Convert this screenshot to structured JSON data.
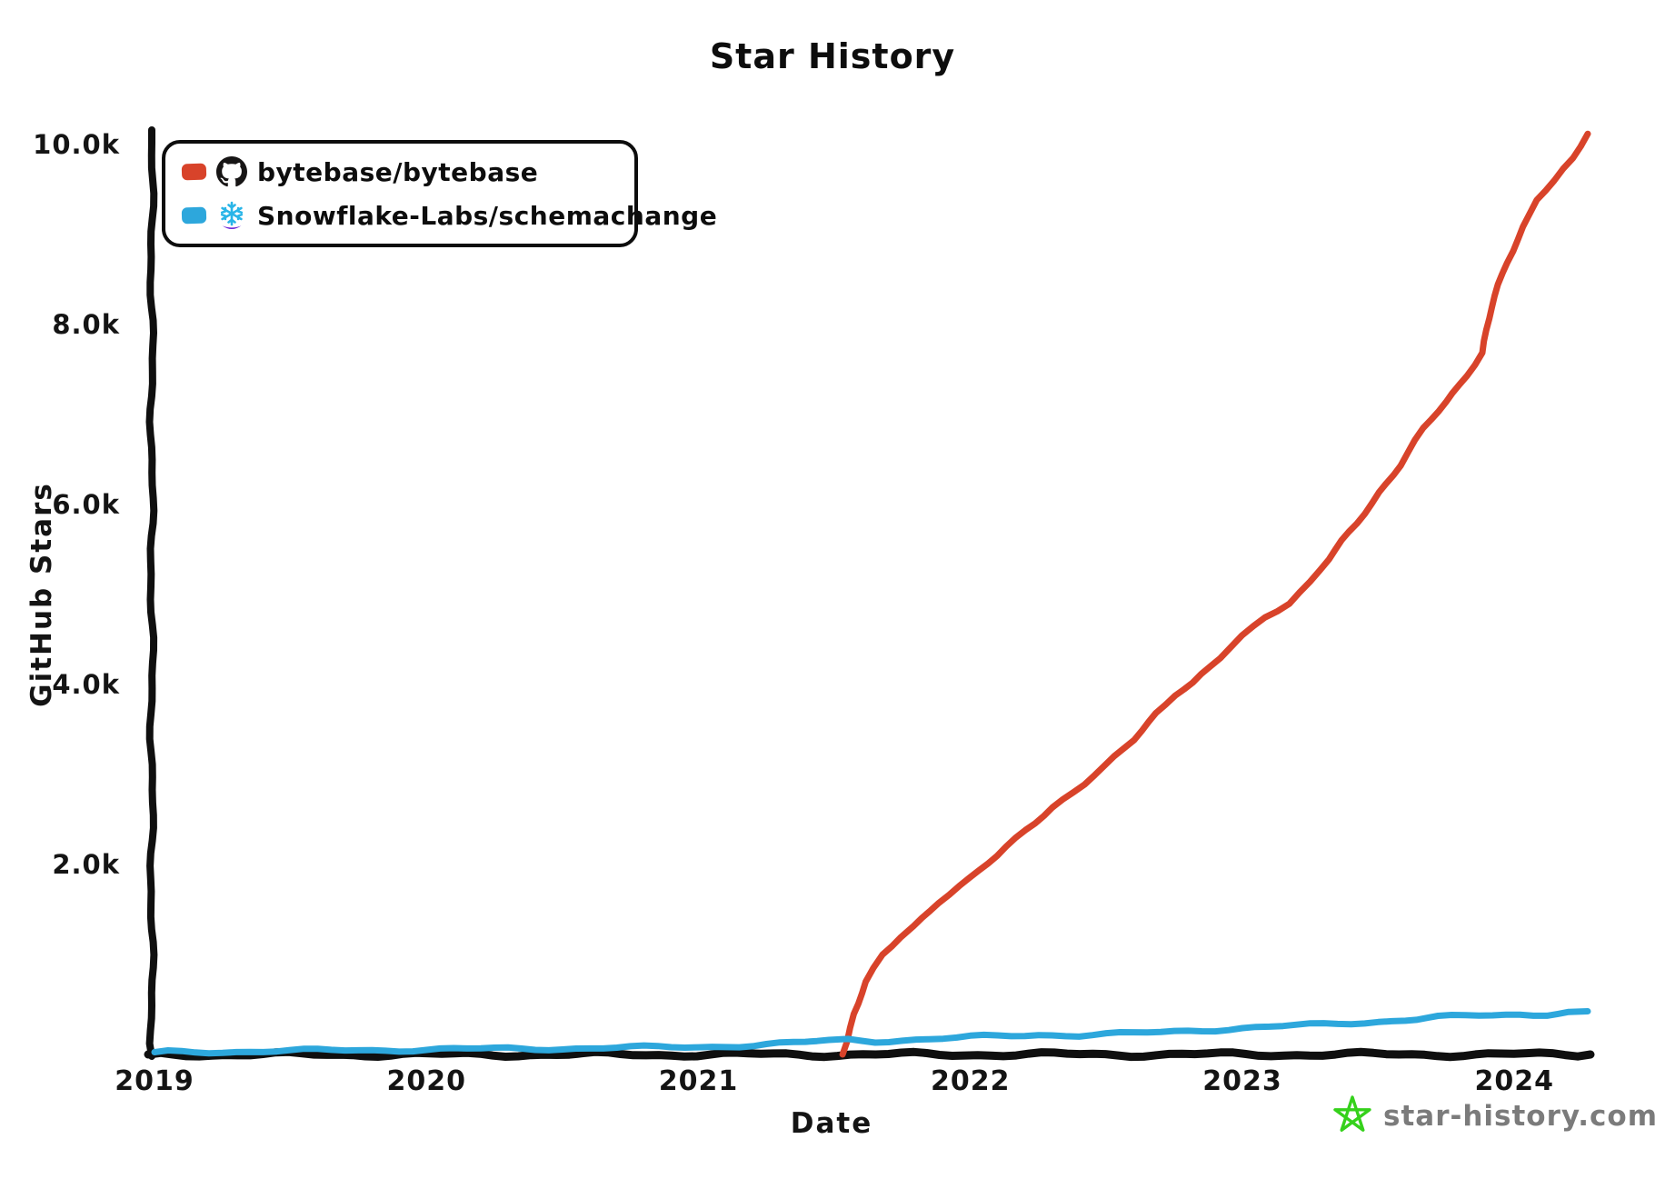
{
  "title": "Star History",
  "colors": {
    "axis": "#0f0f0f",
    "series_red": "#d8432a",
    "series_blue": "#2da7dc",
    "watermark_star": "#35d11b",
    "watermark_text": "#7b7b7b"
  },
  "legend": {
    "items": [
      {
        "label": "bytebase/bytebase",
        "swatch_color": "#d8432a",
        "icon": "github-octocat-icon"
      },
      {
        "label": "Snowflake-Labs/schemachange",
        "swatch_color": "#2da7dc",
        "icon": "snowflake-icon"
      }
    ]
  },
  "watermark": {
    "text": "star-history.com",
    "icon": "green-star-icon"
  },
  "chart_data": {
    "type": "line",
    "title": "Star History",
    "xlabel": "Date",
    "ylabel": "GitHub Stars",
    "xlim": [
      2019,
      2024.28
    ],
    "ylim": [
      0,
      10000
    ],
    "grid": false,
    "legend_position": "top-left",
    "x_ticks": [
      {
        "value": 2019,
        "label": "2019"
      },
      {
        "value": 2020,
        "label": "2020"
      },
      {
        "value": 2021,
        "label": "2021"
      },
      {
        "value": 2022,
        "label": "2022"
      },
      {
        "value": 2023,
        "label": "2023"
      },
      {
        "value": 2024,
        "label": "2024"
      }
    ],
    "y_ticks": [
      {
        "value": 2000,
        "label": "2.0k"
      },
      {
        "value": 4000,
        "label": "4.0k"
      },
      {
        "value": 6000,
        "label": "6.0k"
      },
      {
        "value": 8000,
        "label": "8.0k"
      },
      {
        "value": 10000,
        "label": "10.0k"
      }
    ],
    "series": [
      {
        "name": "bytebase/bytebase",
        "color": "#d8432a",
        "points": [
          [
            2021.53,
            0
          ],
          [
            2021.57,
            450
          ],
          [
            2021.62,
            800
          ],
          [
            2021.68,
            1100
          ],
          [
            2021.74,
            1300
          ],
          [
            2021.79,
            1430
          ],
          [
            2021.88,
            1700
          ],
          [
            2022.0,
            1950
          ],
          [
            2022.1,
            2200
          ],
          [
            2022.2,
            2500
          ],
          [
            2022.3,
            2750
          ],
          [
            2022.42,
            3000
          ],
          [
            2022.5,
            3200
          ],
          [
            2022.6,
            3500
          ],
          [
            2022.68,
            3800
          ],
          [
            2022.75,
            4000
          ],
          [
            2022.82,
            4120
          ],
          [
            2022.92,
            4400
          ],
          [
            2023.0,
            4650
          ],
          [
            2023.08,
            4870
          ],
          [
            2023.17,
            5020
          ],
          [
            2023.25,
            5250
          ],
          [
            2023.32,
            5500
          ],
          [
            2023.42,
            5900
          ],
          [
            2023.5,
            6250
          ],
          [
            2023.58,
            6550
          ],
          [
            2023.67,
            6950
          ],
          [
            2023.75,
            7250
          ],
          [
            2023.82,
            7550
          ],
          [
            2023.88,
            7800
          ],
          [
            2023.92,
            8300
          ],
          [
            2023.97,
            8800
          ],
          [
            2024.03,
            9200
          ],
          [
            2024.08,
            9500
          ],
          [
            2024.15,
            9700
          ],
          [
            2024.22,
            9950
          ],
          [
            2024.27,
            10230
          ]
        ]
      },
      {
        "name": "Snowflake-Labs/schemachange",
        "color": "#2da7dc",
        "points": [
          [
            2019.0,
            25
          ],
          [
            2019.25,
            32
          ],
          [
            2019.5,
            40
          ],
          [
            2019.75,
            48
          ],
          [
            2020.0,
            55
          ],
          [
            2020.25,
            62
          ],
          [
            2020.5,
            68
          ],
          [
            2020.75,
            75
          ],
          [
            2021.0,
            85
          ],
          [
            2021.2,
            105
          ],
          [
            2021.35,
            125
          ],
          [
            2021.48,
            150
          ],
          [
            2021.55,
            165
          ],
          [
            2021.65,
            152
          ],
          [
            2021.8,
            165
          ],
          [
            2021.95,
            180
          ],
          [
            2022.1,
            205
          ],
          [
            2022.25,
            222
          ],
          [
            2022.4,
            215
          ],
          [
            2022.55,
            228
          ],
          [
            2022.7,
            245
          ],
          [
            2022.85,
            272
          ],
          [
            2023.0,
            295
          ],
          [
            2023.15,
            312
          ],
          [
            2023.3,
            332
          ],
          [
            2023.45,
            358
          ],
          [
            2023.6,
            388
          ],
          [
            2023.72,
            410
          ],
          [
            2023.82,
            428
          ],
          [
            2023.92,
            432
          ],
          [
            2024.02,
            448
          ],
          [
            2024.12,
            452
          ],
          [
            2024.2,
            468
          ],
          [
            2024.27,
            480
          ]
        ]
      }
    ]
  }
}
